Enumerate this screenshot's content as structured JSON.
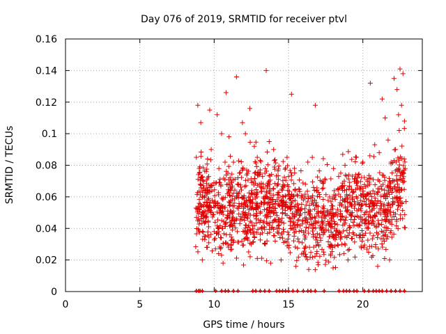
{
  "chart_data": {
    "type": "scatter",
    "title": "Day 076 of 2019, SRMTID for receiver ptvl",
    "xlabel": "GPS time / hours",
    "ylabel": "SRMTID / TECUs",
    "xlim": [
      0,
      24
    ],
    "ylim": [
      0,
      0.16
    ],
    "xticks": [
      0,
      5,
      10,
      15,
      20
    ],
    "xtick_labels": [
      "0",
      "5",
      "10",
      "15",
      "20"
    ],
    "yticks": [
      0,
      0.02,
      0.04,
      0.06,
      0.08,
      0.1,
      0.12,
      0.14,
      0.16
    ],
    "ytick_labels": [
      "0",
      "0.02",
      "0.04",
      "0.06",
      "0.08",
      "0.1",
      "0.12",
      "0.14",
      "0.16"
    ],
    "grid": true,
    "marker": "+",
    "color": "#e00000",
    "data_range": [
      8.75,
      22.85
    ],
    "series": [
      {
        "name": "SRMTID",
        "points": [
          [
            8.9,
            0.118
          ],
          [
            9.1,
            0.107
          ],
          [
            9.0,
            0.075
          ],
          [
            9.2,
            0.06
          ],
          [
            9.3,
            0.048
          ],
          [
            9.4,
            0.035
          ],
          [
            9.5,
            0.028
          ],
          [
            9.2,
            0.02
          ],
          [
            9.7,
            0.115
          ],
          [
            9.8,
            0.09
          ],
          [
            10.2,
            0.112
          ],
          [
            10.5,
            0.1
          ],
          [
            10.8,
            0.126
          ],
          [
            11.0,
            0.098
          ],
          [
            11.3,
            0.082
          ],
          [
            11.5,
            0.136
          ],
          [
            11.7,
            0.075
          ],
          [
            11.9,
            0.107
          ],
          [
            12.1,
            0.1
          ],
          [
            12.4,
            0.116
          ],
          [
            12.7,
            0.092
          ],
          [
            12.9,
            0.085
          ],
          [
            13.1,
            0.075
          ],
          [
            13.3,
            0.068
          ],
          [
            13.5,
            0.14
          ],
          [
            13.7,
            0.095
          ],
          [
            14.0,
            0.09
          ],
          [
            14.3,
            0.055
          ],
          [
            14.6,
            0.05
          ],
          [
            14.9,
            0.085
          ],
          [
            15.2,
            0.125
          ],
          [
            15.4,
            0.078
          ],
          [
            15.7,
            0.065
          ],
          [
            16.0,
            0.058
          ],
          [
            16.3,
            0.082
          ],
          [
            16.6,
            0.085
          ],
          [
            16.8,
            0.118
          ],
          [
            17.1,
            0.06
          ],
          [
            17.3,
            0.053
          ],
          [
            17.6,
            0.05
          ],
          [
            17.9,
            0.045
          ],
          [
            18.2,
            0.05
          ],
          [
            18.5,
            0.06
          ],
          [
            18.8,
            0.08
          ],
          [
            19.1,
            0.067
          ],
          [
            19.4,
            0.063
          ],
          [
            19.7,
            0.074
          ],
          [
            20.0,
            0.082
          ],
          [
            20.3,
            0.07
          ],
          [
            20.5,
            0.132
          ],
          [
            20.8,
            0.093
          ],
          [
            21.1,
            0.088
          ],
          [
            21.3,
            0.122
          ],
          [
            21.5,
            0.11
          ],
          [
            21.7,
            0.096
          ],
          [
            21.9,
            0.082
          ],
          [
            22.1,
            0.135
          ],
          [
            22.3,
            0.128
          ],
          [
            22.5,
            0.141
          ],
          [
            22.7,
            0.138
          ],
          [
            22.8,
            0.108
          ],
          [
            22.6,
            0.118
          ],
          [
            22.4,
            0.112
          ],
          [
            22.2,
            0.09
          ],
          [
            9.6,
            0.044
          ],
          [
            10.0,
            0.038
          ],
          [
            10.3,
            0.024
          ],
          [
            10.6,
            0.018
          ],
          [
            12.5,
            0.03
          ],
          [
            13.8,
            0.018
          ],
          [
            15.5,
            0.016
          ],
          [
            17.0,
            0.017
          ],
          [
            18.0,
            0.015
          ],
          [
            19.0,
            0.02
          ],
          [
            21.0,
            0.016
          ],
          [
            21.8,
            0.02
          ],
          [
            22.9,
            0.057
          ],
          [
            8.8,
            0.085
          ],
          [
            16.2,
            0.022
          ],
          [
            14.5,
            0.02
          ]
        ]
      }
    ],
    "zero_markers": [
      8.8,
      8.95,
      9.05,
      9.2,
      10.1,
      10.5,
      10.75,
      10.95,
      11.3,
      11.6,
      12.6,
      12.8,
      13.1,
      13.4,
      13.7,
      14.2,
      14.4,
      14.6,
      14.8,
      15.0,
      15.3,
      15.6,
      16.0,
      16.3,
      16.5,
      16.8,
      17.4,
      18.4,
      18.7,
      18.9,
      19.1,
      19.4,
      19.6,
      20.1,
      20.4,
      20.7,
      20.9,
      21.1,
      21.3,
      21.6,
      21.9,
      22.2,
      22.5,
      22.8
    ]
  }
}
